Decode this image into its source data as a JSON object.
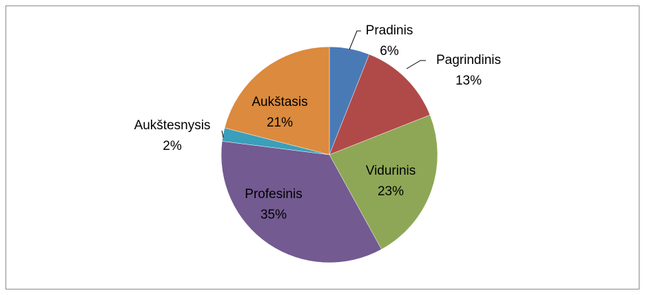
{
  "chart_data": {
    "type": "pie",
    "categories": [
      "Pradinis",
      "Pagrindinis",
      "Vidurinis",
      "Profesinis",
      "Aukštesnysis",
      "Aukštasis"
    ],
    "values": [
      6,
      13,
      23,
      35,
      2,
      21
    ],
    "value_labels": [
      "6%",
      "13%",
      "23%",
      "35%",
      "2%",
      "21%"
    ],
    "colors": [
      "#4a7ab5",
      "#b04a48",
      "#8ea756",
      "#735a91",
      "#3a9fbb",
      "#db8a3e"
    ]
  }
}
